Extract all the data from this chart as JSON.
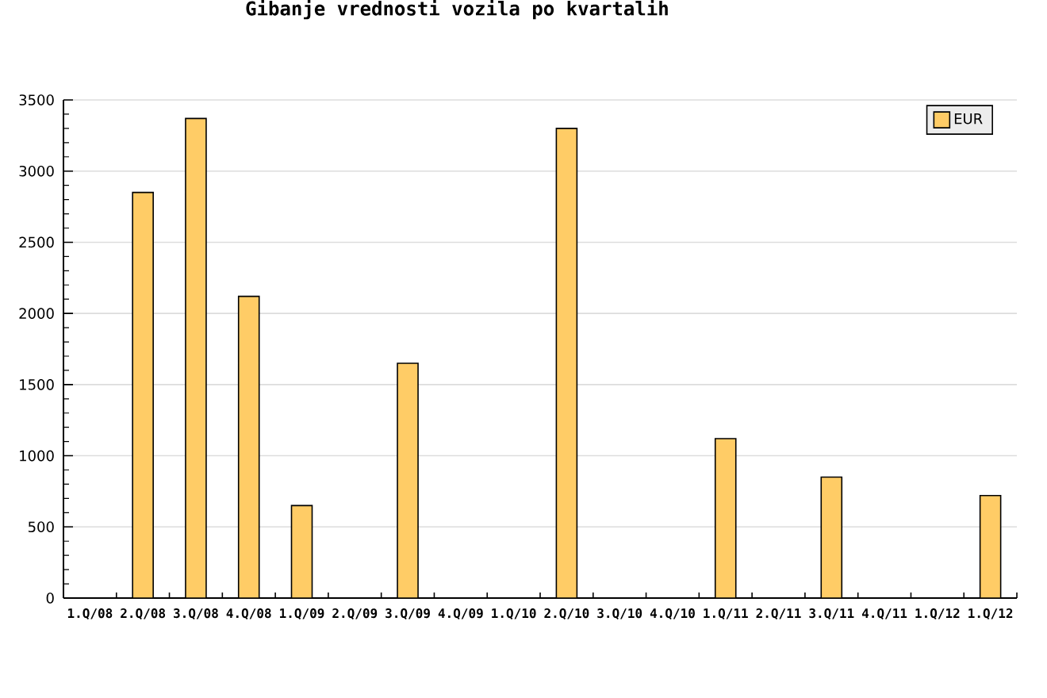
{
  "chart_data": {
    "type": "bar",
    "title": "Gibanje vrednosti vozila po kvartalih",
    "categories": [
      "1.Q/08",
      "2.Q/08",
      "3.Q/08",
      "4.Q/08",
      "1.Q/09",
      "2.Q/09",
      "3.Q/09",
      "4.Q/09",
      "1.Q/10",
      "2.Q/10",
      "3.Q/10",
      "4.Q/10",
      "1.Q/11",
      "2.Q/11",
      "3.Q/11",
      "4.Q/11",
      "1.Q/12",
      "1.Q/12"
    ],
    "series": [
      {
        "name": "EUR",
        "color": "#ffcc66",
        "values": [
          null,
          2850,
          3370,
          2120,
          650,
          null,
          1650,
          null,
          null,
          3300,
          null,
          null,
          1120,
          null,
          850,
          null,
          null,
          720
        ]
      }
    ],
    "ylim": [
      0,
      3500
    ],
    "yticks": [
      0,
      500,
      1000,
      1500,
      2000,
      2500,
      3000,
      3500
    ],
    "grid": "y",
    "legend": "top right"
  }
}
